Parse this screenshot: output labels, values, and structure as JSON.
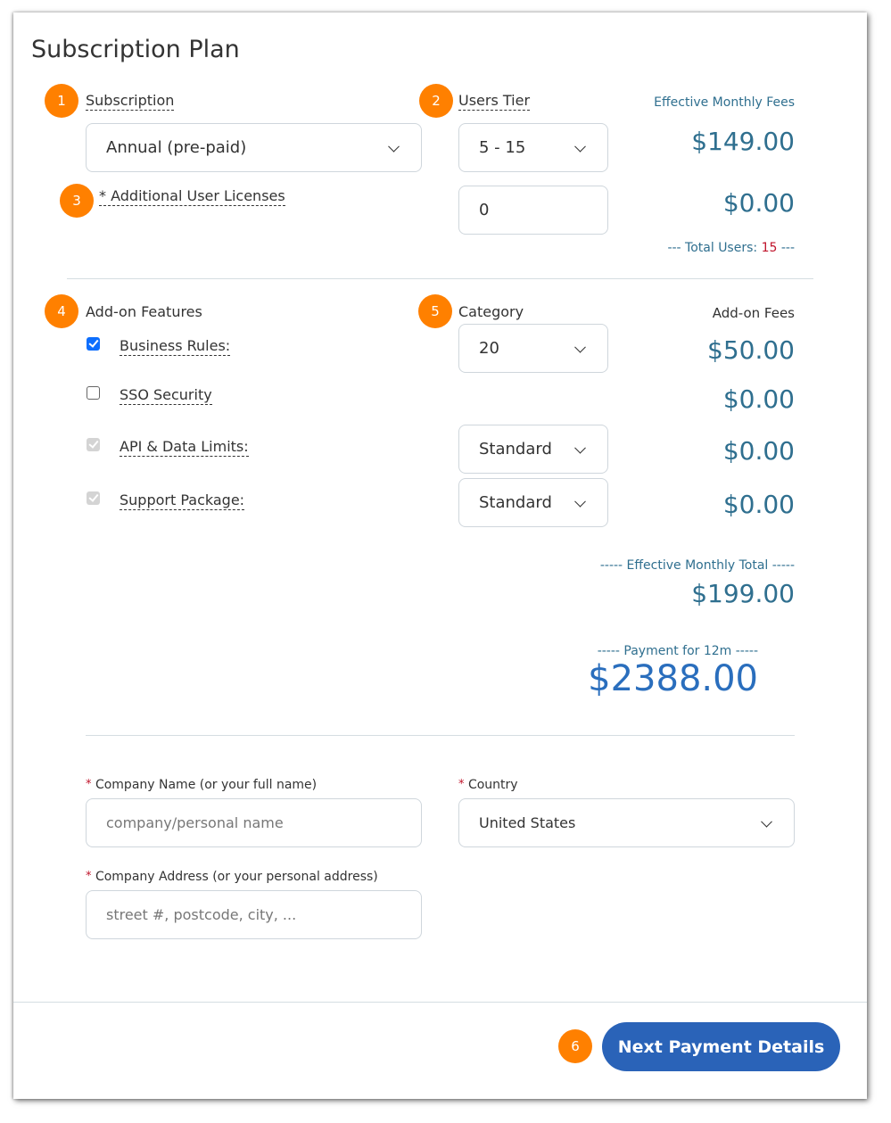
{
  "title": "Subscription Plan",
  "subscription": {
    "badge": "1",
    "label": "Subscription",
    "value": "Annual (pre-paid)"
  },
  "users_tier": {
    "badge": "2",
    "label": "Users Tier",
    "value": "5 - 15"
  },
  "licenses": {
    "badge": "3",
    "required": "*",
    "label": "Additional User Licenses",
    "value": "0"
  },
  "fees": {
    "header": "Effective Monthly Fees",
    "tier_fee": "$149.00",
    "license_fee": "$0.00",
    "total_users_prefix": "--- Total Users: ",
    "total_users_value": "15",
    "total_users_suffix": " ---"
  },
  "addons": {
    "badge": "4",
    "label": "Add-on Features",
    "items": [
      {
        "label": "Business Rules:",
        "checked": true,
        "fee": "$50.00"
      },
      {
        "label": "SSO Security",
        "checked": false,
        "fee": "$0.00"
      },
      {
        "label": "API & Data Limits:",
        "checked": true,
        "disabled": true,
        "fee": "$0.00",
        "select": "Standard"
      },
      {
        "label": "Support Package:",
        "checked": true,
        "disabled": true,
        "fee": "$0.00",
        "select": "Standard"
      }
    ]
  },
  "category": {
    "badge": "5",
    "label": "Category",
    "value": "20"
  },
  "addon_fees_header": "Add-on Fees",
  "totals": {
    "monthly_label": "----- Effective Monthly Total -----",
    "monthly_value": "$199.00",
    "payment_label": "----- Payment for 12m -----",
    "payment_value": "$2388.00"
  },
  "company": {
    "required": "*",
    "label": "Company Name (or your full name)",
    "placeholder": "company/personal name"
  },
  "country": {
    "required": "*",
    "label": "Country",
    "value": "United States"
  },
  "address": {
    "required": "*",
    "label": "Company Address (or your personal address)",
    "placeholder": "street #, postcode, city, ..."
  },
  "footer": {
    "badge": "6",
    "next_label": "Next Payment Details"
  },
  "colors": {
    "accent": "#2a63b8",
    "badge": "#ff8000",
    "fee": "#2f6f8f",
    "highlight": "#c0142b"
  }
}
